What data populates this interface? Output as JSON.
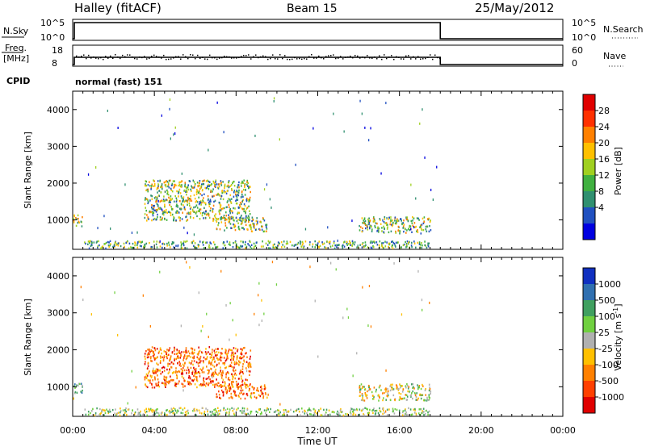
{
  "header": {
    "station": "Halley (fitACF)",
    "beam": "Beam 15",
    "date": "25/May/2012"
  },
  "strips": {
    "nsky": {
      "label": "N.Sky",
      "ticks": [
        "10^5",
        "10^0"
      ],
      "right_label": "N.Search",
      "right_ticks": [
        "10^5",
        "10^0"
      ]
    },
    "freq": {
      "label_line1": "Freq.",
      "label_line2": "[MHz]",
      "ticks": [
        "18",
        "8"
      ],
      "right_label": "Nave",
      "right_ticks": [
        "60",
        "0"
      ]
    },
    "cpid": {
      "label": "CPID",
      "value": "normal (fast) 151"
    }
  },
  "chart_data": [
    {
      "type": "heatmap",
      "panel": "power",
      "ylabel": "Slant Range [km]",
      "ylim": [
        200,
        4500
      ],
      "yticks": [
        1000,
        2000,
        3000,
        4000
      ],
      "colorbar_label": "Power [dB]",
      "colorbar_ticks": [
        "28",
        "24",
        "20",
        "16",
        "12",
        "8",
        "4"
      ],
      "colorbar_colors": [
        "#e00000",
        "#ff3000",
        "#ff8000",
        "#ffc000",
        "#a0d020",
        "#40b040",
        "#309070",
        "#2050c0",
        "#0000e0"
      ],
      "echo_regions": [
        {
          "x": [
            0.0,
            0.5
          ],
          "y": [
            850,
            1150
          ],
          "level": "mid-high"
        },
        {
          "x": [
            3.5,
            8.7
          ],
          "y": [
            1000,
            2100
          ],
          "level": "mid"
        },
        {
          "x": [
            7.0,
            9.5
          ],
          "y": [
            700,
            1100
          ],
          "level": "mid"
        },
        {
          "x": [
            0.5,
            17.5
          ],
          "y": [
            250,
            450
          ],
          "level": "low-mid"
        },
        {
          "x": [
            14.0,
            17.5
          ],
          "y": [
            650,
            1100
          ],
          "level": "mid"
        }
      ]
    },
    {
      "type": "heatmap",
      "panel": "velocity",
      "ylabel": "Slant Range [km]",
      "ylim": [
        200,
        4500
      ],
      "yticks": [
        1000,
        2000,
        3000,
        4000
      ],
      "colorbar_label": "Velocity [m s^-1]",
      "colorbar_ticks": [
        "1000",
        "500",
        "100",
        "25",
        "-25",
        "-100",
        "-500",
        "-1000"
      ],
      "colorbar_colors": [
        "#1030c0",
        "#3070b0",
        "#40a060",
        "#70d040",
        "#b0b0b0",
        "#ffc000",
        "#ff8000",
        "#ff4000",
        "#e00000"
      ],
      "echo_regions": [
        {
          "x": [
            3.5,
            8.7
          ],
          "y": [
            1000,
            2100
          ],
          "level": "negative"
        },
        {
          "x": [
            7.0,
            9.5
          ],
          "y": [
            700,
            1100
          ],
          "level": "negative"
        },
        {
          "x": [
            0.0,
            0.5
          ],
          "y": [
            850,
            1150
          ],
          "level": "positive"
        },
        {
          "x": [
            14.0,
            17.5
          ],
          "y": [
            650,
            1100
          ],
          "level": "mixed"
        },
        {
          "x": [
            0.5,
            17.5
          ],
          "y": [
            250,
            450
          ],
          "level": "near-zero"
        }
      ]
    }
  ],
  "time_axis": {
    "xlabel": "Time UT",
    "ticks": [
      "00:00",
      "04:00",
      "08:00",
      "12:00",
      "16:00",
      "20:00",
      "00:00"
    ]
  }
}
